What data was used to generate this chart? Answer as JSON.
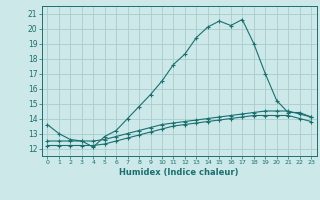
{
  "xlabel": "Humidex (Indice chaleur)",
  "background_color": "#cce8e8",
  "grid_color": "#aacccc",
  "line_color": "#1a7070",
  "xlim": [
    -0.5,
    23.5
  ],
  "ylim": [
    11.5,
    21.5
  ],
  "yticks": [
    12,
    13,
    14,
    15,
    16,
    17,
    18,
    19,
    20,
    21
  ],
  "xticks": [
    0,
    1,
    2,
    3,
    4,
    5,
    6,
    7,
    8,
    9,
    10,
    11,
    12,
    13,
    14,
    15,
    16,
    17,
    18,
    19,
    20,
    21,
    22,
    23
  ],
  "series1_x": [
    0,
    1,
    2,
    3,
    4,
    5,
    6,
    7,
    8,
    9,
    10,
    11,
    12,
    13,
    14,
    15,
    16,
    17,
    18,
    19,
    20,
    21,
    22,
    23
  ],
  "series1_y": [
    13.6,
    13.0,
    12.6,
    12.5,
    12.1,
    12.8,
    13.2,
    14.0,
    14.8,
    15.6,
    16.5,
    17.6,
    18.3,
    19.4,
    20.1,
    20.5,
    20.2,
    20.6,
    19.0,
    17.0,
    15.2,
    14.4,
    14.4,
    14.1
  ],
  "series2_x": [
    0,
    1,
    2,
    3,
    4,
    5,
    6,
    7,
    8,
    9,
    10,
    11,
    12,
    13,
    14,
    15,
    16,
    17,
    18,
    19,
    20,
    21,
    22,
    23
  ],
  "series2_y": [
    12.5,
    12.5,
    12.5,
    12.5,
    12.5,
    12.6,
    12.8,
    13.0,
    13.2,
    13.4,
    13.6,
    13.7,
    13.8,
    13.9,
    14.0,
    14.1,
    14.2,
    14.3,
    14.4,
    14.5,
    14.5,
    14.5,
    14.3,
    14.1
  ],
  "series3_x": [
    0,
    1,
    2,
    3,
    4,
    5,
    6,
    7,
    8,
    9,
    10,
    11,
    12,
    13,
    14,
    15,
    16,
    17,
    18,
    19,
    20,
    21,
    22,
    23
  ],
  "series3_y": [
    12.2,
    12.2,
    12.2,
    12.2,
    12.2,
    12.3,
    12.5,
    12.7,
    12.9,
    13.1,
    13.3,
    13.5,
    13.6,
    13.7,
    13.8,
    13.9,
    14.0,
    14.1,
    14.2,
    14.2,
    14.2,
    14.2,
    14.0,
    13.8
  ]
}
